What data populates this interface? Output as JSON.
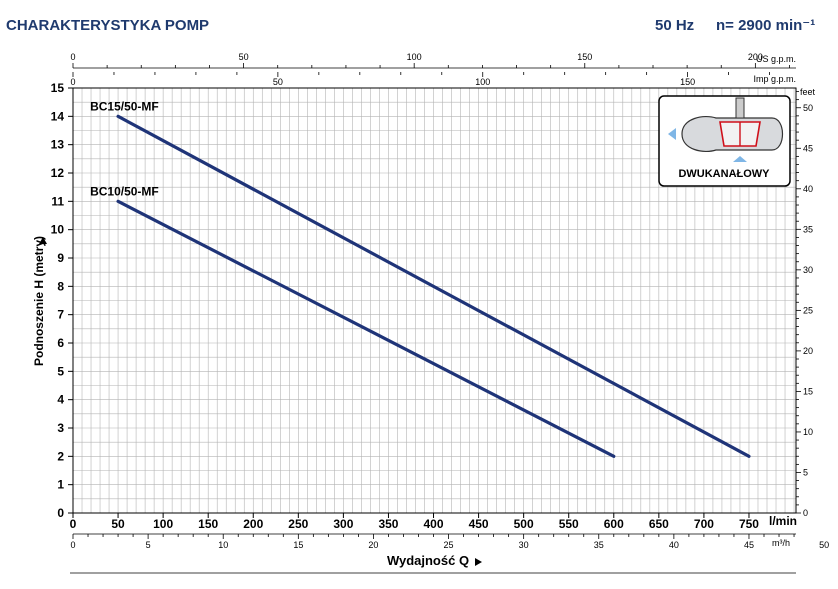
{
  "header": {
    "title": "CHARAKTERYSTYKA POMP",
    "frequency": "50 Hz",
    "speed": "n= 2900 min⁻¹"
  },
  "inset": {
    "label": "DWUKANAŁOWY",
    "icon": "dual-channel-impeller-icon"
  },
  "colors": {
    "title": "#1f3a6e",
    "curve": "#1f3478",
    "grid": "#b4b4b4",
    "axis": "#000000"
  },
  "chart_data": {
    "type": "line",
    "title": "CHARAKTERYSTYKA POMP",
    "xlabel": "Wydajność Q",
    "ylabel": "Podnoszenie H (metry)",
    "x_unit": "l/min",
    "xlim": [
      0,
      780
    ],
    "ylim": [
      0,
      15
    ],
    "x_ticks": [
      0,
      50,
      100,
      150,
      200,
      250,
      300,
      350,
      400,
      450,
      500,
      550,
      600,
      650,
      700,
      750
    ],
    "y_ticks": [
      0,
      1,
      2,
      3,
      4,
      5,
      6,
      7,
      8,
      9,
      10,
      11,
      12,
      13,
      14,
      15
    ],
    "series": [
      {
        "name": "BC15/50-MF",
        "x": [
          50,
          750
        ],
        "y": [
          14,
          2
        ]
      },
      {
        "name": "BC10/50-MF",
        "x": [
          50,
          600
        ],
        "y": [
          11,
          2
        ]
      }
    ],
    "secondary_axes": {
      "us_gpm": {
        "label": "US g.p.m.",
        "ticks": [
          0,
          50,
          100,
          150,
          200
        ],
        "factor": 3.78541
      },
      "imp_gpm": {
        "label": "Imp g.p.m.",
        "ticks": [
          0,
          50,
          100,
          150
        ],
        "factor": 4.54609
      },
      "m3h": {
        "label": "m³/h",
        "ticks": [
          0,
          5,
          10,
          15,
          20,
          25,
          30,
          35,
          40,
          45,
          50
        ],
        "factor": 16.6667
      },
      "feet": {
        "label": "feet",
        "ticks": [
          0,
          5,
          10,
          15,
          20,
          25,
          30,
          35,
          40,
          45,
          50
        ],
        "factor": 0.3048
      }
    },
    "grid": true
  }
}
